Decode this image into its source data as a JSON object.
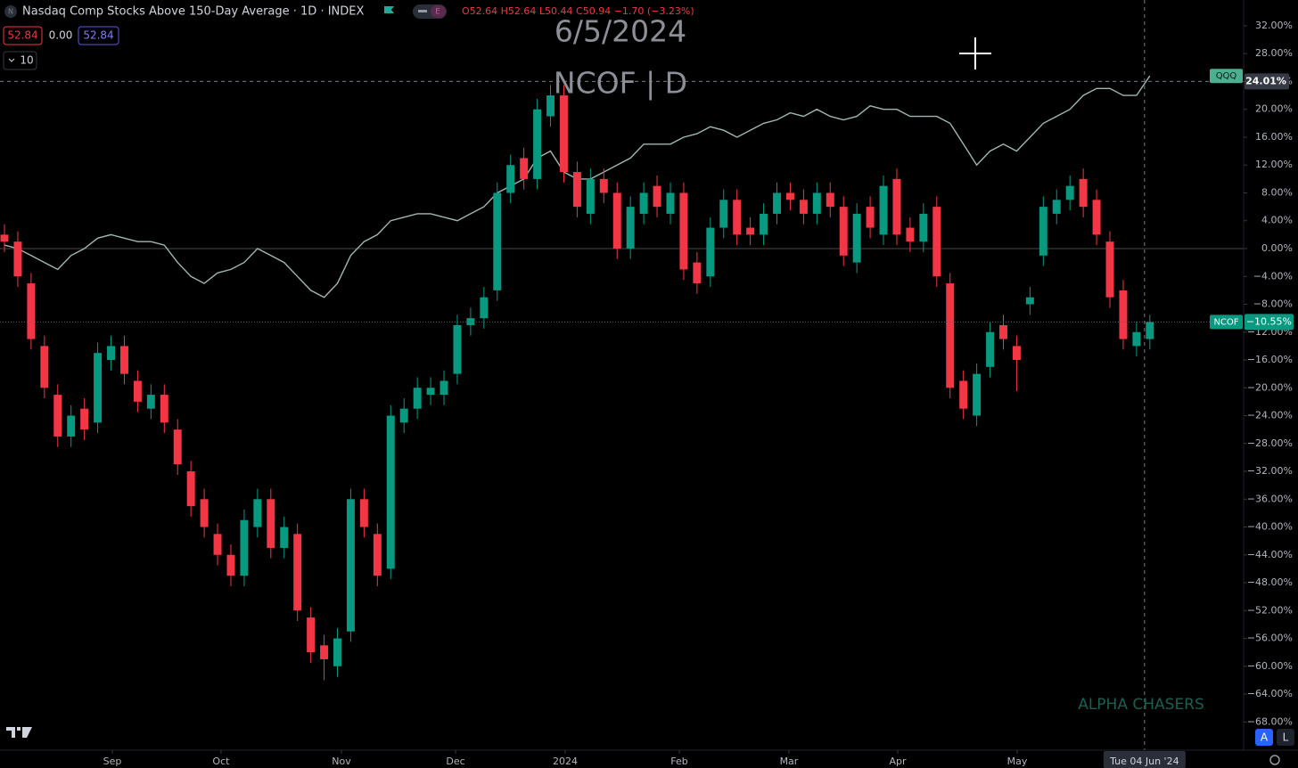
{
  "header": {
    "title": "Nasdaq Comp Stocks Above 150-Day Average · 1D · INDEX",
    "ohlc": "O52.64 H52.64 L50.44 C50.94 −1.70 (−3.23%)",
    "values": [
      "52.84",
      "0.00",
      "52.84"
    ],
    "interval": "10",
    "badge": "E",
    "icon": "N"
  },
  "watermark": {
    "date": "6/5/2024",
    "symbol": "NCOF | D"
  },
  "brand": "ALPHA CHASERS",
  "buttons": [
    "A",
    "L"
  ],
  "chart_data": {
    "type": "candlestick",
    "xlim": [
      0.665,
      94.04
    ],
    "ylim": [
      -72.06,
      35.71
    ],
    "grid": false,
    "baseline": 0,
    "xticks": [
      {
        "value": 9.1,
        "label": "Sep"
      },
      {
        "value": 17.26,
        "label": "Oct"
      },
      {
        "value": 26.3,
        "label": "Nov"
      },
      {
        "value": 34.87,
        "label": "Dec"
      },
      {
        "value": 43.1,
        "label": "2024"
      },
      {
        "value": 51.67,
        "label": "Feb"
      },
      {
        "value": 59.9,
        "label": "Mar"
      },
      {
        "value": 68.07,
        "label": "Apr"
      },
      {
        "value": 77.04,
        "label": "May"
      }
    ],
    "yticks": [
      {
        "value": 32,
        "label": "32.00%"
      },
      {
        "value": 28,
        "label": "28.00%"
      },
      {
        "value": 24,
        "label": "24.00%"
      },
      {
        "value": 20,
        "label": "20.00%"
      },
      {
        "value": 16,
        "label": "16.00%"
      },
      {
        "value": 12,
        "label": "12.00%"
      },
      {
        "value": 8,
        "label": "8.00%"
      },
      {
        "value": 4,
        "label": "4.00%"
      },
      {
        "value": 0,
        "label": "0.00%"
      },
      {
        "value": -4,
        "label": "−4.00%"
      },
      {
        "value": -8,
        "label": "−8.00%"
      },
      {
        "value": -12,
        "label": "−12.00%"
      },
      {
        "value": -16,
        "label": "−16.00%"
      },
      {
        "value": -20,
        "label": "−20.00%"
      },
      {
        "value": -24,
        "label": "−24.00%"
      },
      {
        "value": -28,
        "label": "−28.00%"
      },
      {
        "value": -32,
        "label": "−32.00%"
      },
      {
        "value": -36,
        "label": "−36.00%"
      },
      {
        "value": -40,
        "label": "−40.00%"
      },
      {
        "value": -44,
        "label": "−44.00%"
      },
      {
        "value": -48,
        "label": "−48.00%"
      },
      {
        "value": -52,
        "label": "−52.00%"
      },
      {
        "value": -56,
        "label": "−56.00%"
      },
      {
        "value": -60,
        "label": "−60.00%"
      },
      {
        "value": -64,
        "label": "−64.00%"
      },
      {
        "value": -68,
        "label": "−68.00%"
      }
    ],
    "crosshair": {
      "x": 86.6,
      "x_label": "Tue 04 Jun '24",
      "y": 24.01,
      "y_label": "24.01%"
    },
    "x": [
      1,
      2,
      3,
      4,
      5,
      6,
      7,
      8,
      9,
      10,
      11,
      12,
      13,
      14,
      15,
      16,
      17,
      18,
      19,
      20,
      21,
      22,
      23,
      24,
      25,
      26,
      27,
      28,
      29,
      30,
      31,
      32,
      33,
      34,
      35,
      36,
      37,
      38,
      39,
      40,
      41,
      42,
      43,
      44,
      45,
      46,
      47,
      48,
      49,
      50,
      51,
      52,
      53,
      54,
      55,
      56,
      57,
      58,
      59,
      60,
      61,
      62,
      63,
      64,
      65,
      66,
      67,
      68,
      69,
      70,
      71,
      72,
      73,
      74,
      75,
      76,
      77,
      78,
      79,
      80,
      81,
      82,
      83,
      84,
      85,
      86,
      87
    ],
    "series": [
      {
        "name": "QQQ",
        "type": "line",
        "color": "#9fb7b3",
        "values": [
          0.5,
          0,
          -1,
          -2,
          -3,
          -1,
          0,
          1.5,
          2,
          1.5,
          1,
          1,
          0.5,
          -2,
          -4,
          -5,
          -3.5,
          -3,
          -2,
          0,
          -1,
          -2,
          -4,
          -6,
          -7,
          -5,
          -1,
          1,
          2,
          4,
          4.5,
          5,
          5,
          4.5,
          4,
          5,
          6,
          8,
          9,
          10,
          13,
          14,
          11,
          10,
          10,
          11,
          12,
          13,
          15,
          15,
          15,
          16,
          16.5,
          17.5,
          17,
          16,
          17,
          18,
          18.5,
          19.5,
          19,
          20,
          19,
          18.5,
          19,
          20.5,
          20,
          20,
          19,
          19,
          19,
          18,
          15,
          12,
          14,
          15,
          14,
          16,
          18,
          19,
          20,
          22,
          23,
          23,
          22,
          22,
          24.8
        ]
      },
      {
        "name": "NCOF",
        "type": "candlestick",
        "up_color": "#089981",
        "down_color": "#f23645",
        "last_label": "−10.55%",
        "open": [
          2,
          1,
          -5,
          -14,
          -21,
          -27,
          -23,
          -25,
          -16,
          -14,
          -19,
          -23,
          -21,
          -26,
          -32,
          -36,
          -41,
          -44,
          -47,
          -40,
          -36,
          -43,
          -41,
          -53,
          -57,
          -60,
          -55,
          -36,
          -41,
          -46,
          -25,
          -23,
          -21,
          -21,
          -18,
          -11,
          -10,
          -6,
          8,
          13,
          10,
          19,
          22,
          11,
          5,
          10,
          8,
          0,
          5,
          9,
          5,
          8,
          -2,
          -4,
          3,
          7,
          3,
          2,
          5,
          8,
          7,
          5,
          8,
          6,
          -2,
          6,
          2,
          10,
          3,
          1,
          6,
          -5,
          -19,
          -24,
          -17,
          -11,
          -14,
          -8,
          -1,
          5,
          7,
          10,
          7,
          1,
          -6,
          -14,
          -13
        ],
        "high": [
          3.5,
          2.5,
          -3.5,
          -12.5,
          -19.5,
          -22.5,
          -21.5,
          -13.5,
          -12.5,
          -12.5,
          -17.5,
          -19.5,
          -19.5,
          -24.5,
          -30.5,
          -34.5,
          -39.5,
          -42.5,
          -37.5,
          -34.5,
          -34.5,
          -38.5,
          -39.5,
          -51.5,
          -55.5,
          -54.5,
          -34.5,
          -34.5,
          -39.5,
          -22.5,
          -21.5,
          -18.5,
          -18.5,
          -17.5,
          -9.5,
          -8.5,
          -5.5,
          9.5,
          13.5,
          14.5,
          21.5,
          23.5,
          23.5,
          12.5,
          11.5,
          11.5,
          9.5,
          7.5,
          9.5,
          10.5,
          9.5,
          9.5,
          -0.5,
          4.5,
          8.5,
          8.5,
          4.5,
          6.5,
          9.5,
          9.5,
          8.5,
          9.5,
          9.5,
          7.5,
          6.5,
          7.5,
          10.5,
          11.5,
          4.5,
          6.5,
          7.5,
          -3.5,
          -17.5,
          -16.5,
          -10.5,
          -9.5,
          -12.5,
          -5.5,
          7.5,
          8.5,
          10.5,
          11.5,
          8.5,
          2.5,
          -4.5,
          -10.5,
          -9.5
        ],
        "low": [
          -0.5,
          -5.5,
          -14.5,
          -21.5,
          -28.5,
          -28.5,
          -27.5,
          -26.5,
          -17.5,
          -19.5,
          -23.5,
          -24.5,
          -26.5,
          -32.5,
          -38.5,
          -41.5,
          -45.5,
          -48.5,
          -48.5,
          -41.5,
          -44.5,
          -44.5,
          -53.5,
          -59.5,
          -62,
          -61.5,
          -56.5,
          -41.5,
          -48.5,
          -47.5,
          -26.5,
          -24.5,
          -22.5,
          -22.5,
          -19.5,
          -12.5,
          -11.5,
          -7.5,
          6.5,
          8.5,
          8.5,
          17.5,
          9.5,
          4.5,
          3.5,
          6.5,
          -1.5,
          -1.5,
          3.5,
          4.5,
          3.5,
          -4.5,
          -6.5,
          -5.5,
          1.5,
          0.5,
          0.5,
          0.5,
          3.5,
          5.5,
          3.5,
          3.5,
          4.5,
          -2.5,
          -3.5,
          1.5,
          0.5,
          0.5,
          -0.5,
          -0.5,
          -5.5,
          -21.5,
          -24.5,
          -25.5,
          -18.5,
          -14.5,
          -20.5,
          -9.5,
          -2.5,
          3.5,
          5.5,
          4.5,
          0.5,
          -8.5,
          -14.5,
          -15.5,
          -14.5
        ],
        "close": [
          1,
          -4,
          -13,
          -20,
          -27,
          -24,
          -26,
          -15,
          -14,
          -18,
          -22,
          -21,
          -25,
          -31,
          -37,
          -40,
          -44,
          -47,
          -39,
          -36,
          -43,
          -40,
          -52,
          -58,
          -59,
          -56,
          -36,
          -40,
          -47,
          -24,
          -23,
          -20,
          -20,
          -19,
          -11,
          -10,
          -7,
          8,
          12,
          10,
          20,
          22,
          11,
          6,
          10,
          8,
          0,
          6,
          8,
          6,
          8,
          -3,
          -5,
          3,
          7,
          2,
          2,
          5,
          8,
          7,
          5,
          8,
          6,
          -1,
          5,
          3,
          9,
          2,
          1,
          5,
          -4,
          -20,
          -23,
          -18,
          -12,
          -13,
          -16,
          -7,
          6,
          7,
          9,
          6,
          2,
          -7,
          -13,
          -12,
          -10.55
        ]
      }
    ]
  }
}
